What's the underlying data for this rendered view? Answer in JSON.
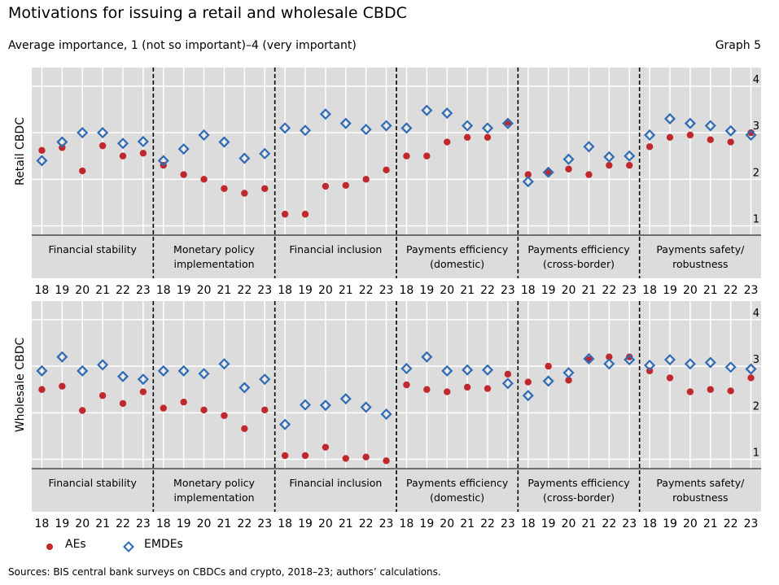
{
  "title": "Motivations for issuing a retail and wholesale CBDC",
  "subtitle": "Average importance, 1 (not so important)–4 (very important)",
  "graph_number": "Graph 5",
  "source": "Sources: BIS central bank surveys on CBDCs and crypto, 2018–23; authors’ calculations.",
  "colors": {
    "aes": "#c0282d",
    "emdes": "#2f6bb5",
    "panel_bg": "#dcdcdc",
    "grid": "#ffffff"
  },
  "legend": [
    {
      "label": "AEs",
      "marker": "circle",
      "color": "#c0282d"
    },
    {
      "label": "EMDEs",
      "marker": "diamond",
      "color": "#2f6bb5"
    }
  ],
  "chart_data": [
    {
      "type": "scatter",
      "ylabel": "Retail CBDC",
      "ylim": [
        0.8,
        4.4
      ],
      "yticks": [
        1,
        2,
        3,
        4
      ],
      "y_axis_side": "right",
      "grid": true,
      "categories": [
        "Financial stability",
        "Monetary policy implementation",
        "Financial inclusion",
        "Payments efficiency (domestic)",
        "Payments efficiency (cross-border)",
        "Payments safety/ robustness"
      ],
      "category_lines": [
        [
          "Financial stability"
        ],
        [
          "Monetary policy",
          "implementation"
        ],
        [
          "Financial inclusion"
        ],
        [
          "Payments efficiency",
          "(domestic)"
        ],
        [
          "Payments efficiency",
          "(cross-border)"
        ],
        [
          "Payments safety/",
          "robustness"
        ]
      ],
      "x_ticks": [
        "18",
        "19",
        "20",
        "21",
        "22",
        "23"
      ],
      "series": [
        {
          "name": "AEs",
          "marker": "circle",
          "values": [
            [
              2.62,
              2.68,
              2.18,
              2.72,
              2.5,
              2.56
            ],
            [
              2.3,
              2.1,
              2.0,
              1.8,
              1.7,
              1.8
            ],
            [
              1.25,
              1.25,
              1.85,
              1.87,
              2.0,
              2.2
            ],
            [
              2.5,
              2.5,
              2.8,
              2.9,
              2.9,
              3.22
            ],
            [
              2.1,
              2.15,
              2.22,
              2.1,
              2.3,
              2.3
            ],
            [
              2.7,
              2.9,
              2.95,
              2.85,
              2.8,
              3.0
            ]
          ]
        },
        {
          "name": "EMDEs",
          "marker": "diamond",
          "values": [
            [
              2.4,
              2.8,
              3.0,
              3.0,
              2.77,
              2.81
            ],
            [
              2.4,
              2.65,
              2.95,
              2.8,
              2.45,
              2.55
            ],
            [
              3.1,
              3.05,
              3.4,
              3.2,
              3.07,
              3.15
            ],
            [
              3.1,
              3.48,
              3.42,
              3.15,
              3.1,
              3.2
            ],
            [
              1.95,
              2.15,
              2.43,
              2.7,
              2.48,
              2.5
            ],
            [
              2.95,
              3.3,
              3.2,
              3.15,
              3.04,
              2.95
            ]
          ]
        }
      ]
    },
    {
      "type": "scatter",
      "ylabel": "Wholesale CBDC",
      "ylim": [
        0.8,
        4.4
      ],
      "yticks": [
        1,
        2,
        3,
        4
      ],
      "y_axis_side": "right",
      "grid": true,
      "categories": [
        "Financial stability",
        "Monetary policy implementation",
        "Financial inclusion",
        "Payments efficiency (domestic)",
        "Payments efficiency (cross-border)",
        "Payments safety/ robustness"
      ],
      "category_lines": [
        [
          "Financial stability"
        ],
        [
          "Monetary policy",
          "implementation"
        ],
        [
          "Financial inclusion"
        ],
        [
          "Payments efficiency",
          "(domestic)"
        ],
        [
          "Payments efficiency",
          "(cross-border)"
        ],
        [
          "Payments safety/",
          "robustness"
        ]
      ],
      "x_ticks": [
        "18",
        "19",
        "20",
        "21",
        "22",
        "23"
      ],
      "series": [
        {
          "name": "AEs",
          "marker": "circle",
          "values": [
            [
              2.5,
              2.57,
              2.05,
              2.37,
              2.2,
              2.45
            ],
            [
              2.1,
              2.23,
              2.06,
              1.94,
              1.66,
              2.06
            ],
            [
              1.08,
              1.08,
              1.26,
              1.02,
              1.05,
              0.97
            ],
            [
              2.6,
              2.5,
              2.45,
              2.55,
              2.52,
              2.83
            ],
            [
              2.66,
              3.0,
              2.7,
              3.14,
              3.2,
              3.2
            ],
            [
              2.9,
              2.75,
              2.45,
              2.5,
              2.47,
              2.75
            ]
          ]
        },
        {
          "name": "EMDEs",
          "marker": "diamond",
          "values": [
            [
              2.9,
              3.2,
              2.9,
              3.03,
              2.78,
              2.72
            ],
            [
              2.9,
              2.9,
              2.84,
              3.05,
              2.54,
              2.72
            ],
            [
              1.75,
              2.17,
              2.16,
              2.3,
              2.12,
              1.97
            ],
            [
              2.95,
              3.2,
              2.9,
              2.92,
              2.92,
              2.63
            ],
            [
              2.37,
              2.68,
              2.86,
              3.16,
              3.05,
              3.14
            ],
            [
              3.02,
              3.14,
              3.05,
              3.08,
              2.98,
              2.94
            ]
          ]
        }
      ]
    }
  ]
}
